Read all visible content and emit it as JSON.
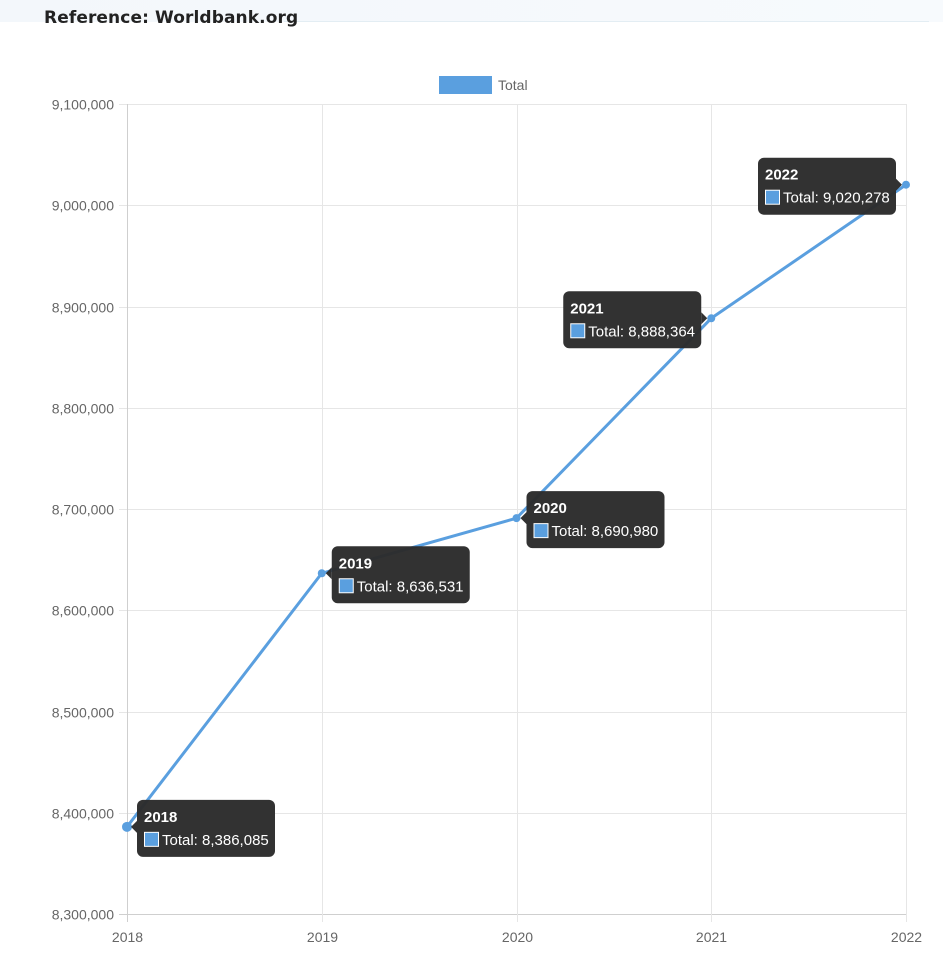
{
  "reference": "Reference: Worldbank.org",
  "colors": {
    "series": "#5a9fdf",
    "grid": "#e6e6e6",
    "tooltip_bg": "#2b2b2b"
  },
  "chart_data": {
    "type": "line",
    "x": [
      "2018",
      "2019",
      "2020",
      "2021",
      "2022"
    ],
    "series": [
      {
        "name": "Total",
        "values": [
          8386085,
          8636531,
          8690980,
          8888364,
          9020278
        ]
      }
    ],
    "ylim": [
      8300000,
      9100000
    ],
    "yticks": [
      "8,300,000",
      "8,400,000",
      "8,500,000",
      "8,600,000",
      "8,700,000",
      "8,800,000",
      "8,900,000",
      "9,000,000",
      "9,100,000"
    ],
    "legend": "top-center",
    "grid": true,
    "tooltips": [
      {
        "title": "2018",
        "label": "Total: 8,386,085"
      },
      {
        "title": "2019",
        "label": "Total: 8,636,531"
      },
      {
        "title": "2020",
        "label": "Total: 8,690,980"
      },
      {
        "title": "2021",
        "label": "Total: 8,888,364"
      },
      {
        "title": "2022",
        "label": "Total: 9,020,278"
      }
    ]
  }
}
